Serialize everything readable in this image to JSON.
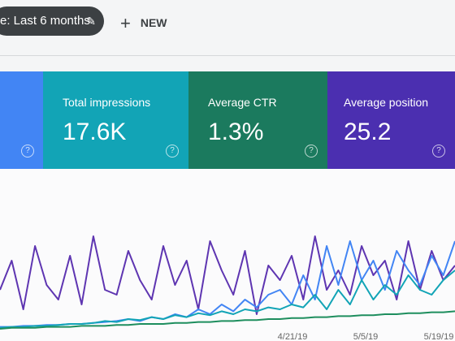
{
  "toolbar": {
    "filter_chip": "e: Last 6 months",
    "new_button": "NEW"
  },
  "help_icon": "?",
  "cards": [
    {
      "label": "Total impressions",
      "value": "17.6K"
    },
    {
      "label": "Average CTR",
      "value": "1.3%"
    },
    {
      "label": "Average position",
      "value": "25.2"
    }
  ],
  "chart": {
    "x_tick_labels": [
      "4/21/19",
      "5/5/19",
      "5/19/19"
    ],
    "series": [
      {
        "color": "#5e35b1",
        "values": [
          40,
          70,
          20,
          85,
          45,
          30,
          75,
          25,
          95,
          40,
          35,
          80,
          50,
          30,
          85,
          45,
          70,
          20,
          90,
          60,
          35,
          80,
          15,
          65,
          50,
          75,
          30,
          95,
          40,
          60,
          35,
          85,
          55,
          70,
          30,
          90,
          40,
          80,
          50,
          65
        ]
      },
      {
        "color": "#4285f4",
        "values": [
          2,
          2,
          3,
          3,
          4,
          4,
          5,
          5,
          6,
          7,
          8,
          10,
          8,
          12,
          10,
          15,
          12,
          20,
          15,
          25,
          18,
          30,
          22,
          35,
          40,
          25,
          55,
          30,
          85,
          45,
          90,
          50,
          70,
          40,
          80,
          60,
          45,
          75,
          55,
          90
        ]
      },
      {
        "color": "#12a4b6",
        "values": [
          1,
          2,
          2,
          3,
          3,
          4,
          5,
          5,
          6,
          8,
          7,
          10,
          9,
          12,
          10,
          14,
          12,
          16,
          14,
          18,
          15,
          20,
          18,
          22,
          20,
          25,
          22,
          35,
          20,
          40,
          25,
          50,
          30,
          45,
          35,
          55,
          40,
          35,
          50,
          60
        ]
      },
      {
        "color": "#1e8e5e",
        "values": [
          0,
          1,
          1,
          1,
          2,
          2,
          2,
          3,
          3,
          3,
          4,
          4,
          5,
          5,
          5,
          6,
          6,
          7,
          7,
          8,
          8,
          9,
          9,
          10,
          10,
          11,
          11,
          12,
          12,
          13,
          13,
          14,
          14,
          15,
          15,
          16,
          16,
          17,
          17,
          18
        ]
      }
    ]
  }
}
